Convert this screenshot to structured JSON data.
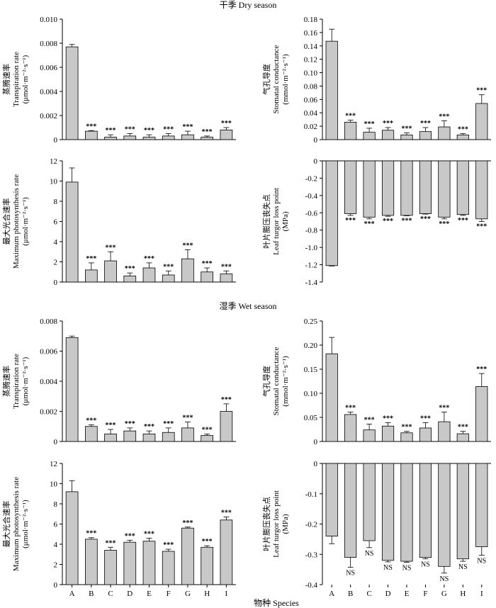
{
  "figure": {
    "dry_title": "干季 Dry season",
    "wet_title": "湿季 Wet season",
    "xlabel": "物种 Species",
    "colors": {
      "bar_fill": "#c8c8c8",
      "bar_stroke": "#000000"
    }
  },
  "chart_data": [
    {
      "type": "bar",
      "season": "Dry season",
      "categories": [
        "A",
        "B",
        "C",
        "D",
        "E",
        "F",
        "G",
        "H",
        "I"
      ],
      "ylabel": [
        "蒸腾速率",
        "Transpiration rate",
        "(μmol·m⁻²·s⁻¹)"
      ],
      "ylim": [
        0,
        0.01
      ],
      "yticks": [
        "0",
        "0.002",
        "0.004",
        "0.006",
        "0.008",
        "0.010"
      ],
      "tickvals": [
        0,
        0.002,
        0.004,
        0.006,
        0.008,
        0.01
      ],
      "values": [
        0.0077,
        0.0007,
        0.0002,
        0.0003,
        0.0002,
        0.0003,
        0.0004,
        0.0002,
        0.0008
      ],
      "errors": [
        0.0002,
        5e-05,
        0.0002,
        0.0002,
        0.0002,
        0.0002,
        0.0003,
        0.0001,
        0.0002
      ],
      "significance": [
        "",
        "***",
        "***",
        "***",
        "***",
        "***",
        "***",
        "***",
        "***"
      ]
    },
    {
      "type": "bar",
      "season": "Dry season",
      "categories": [
        "A",
        "B",
        "C",
        "D",
        "E",
        "F",
        "G",
        "H",
        "I"
      ],
      "ylabel": [
        "气孔导度",
        "Stomatal conductance",
        "(mmol·m⁻²·s⁻¹)"
      ],
      "ylim": [
        0,
        0.18
      ],
      "yticks": [
        "0",
        "0.02",
        "0.04",
        "0.06",
        "0.08",
        "0.10",
        "0.12",
        "0.14",
        "0.16",
        "0.18"
      ],
      "tickvals": [
        0,
        0.02,
        0.04,
        0.06,
        0.08,
        0.1,
        0.12,
        0.14,
        0.16,
        0.18
      ],
      "values": [
        0.147,
        0.026,
        0.011,
        0.014,
        0.007,
        0.012,
        0.019,
        0.007,
        0.054
      ],
      "errors": [
        0.018,
        0.003,
        0.006,
        0.004,
        0.003,
        0.006,
        0.009,
        0.002,
        0.013
      ],
      "significance": [
        "",
        "***",
        "***",
        "***",
        "***",
        "***",
        "***",
        "***",
        "***"
      ]
    },
    {
      "type": "bar",
      "season": "Dry season",
      "categories": [
        "A",
        "B",
        "C",
        "D",
        "E",
        "F",
        "G",
        "H",
        "I"
      ],
      "ylabel": [
        "最大光合速率",
        "Maximum photosynthesis rate",
        "(μmol·m⁻²·s⁻¹)"
      ],
      "ylim": [
        0,
        12
      ],
      "yticks": [
        "0",
        "2",
        "4",
        "6",
        "8",
        "10",
        "12"
      ],
      "tickvals": [
        0,
        2,
        4,
        6,
        8,
        10,
        12
      ],
      "values": [
        9.9,
        1.2,
        2.1,
        0.6,
        1.4,
        0.7,
        2.3,
        1.0,
        0.8
      ],
      "errors": [
        1.4,
        0.7,
        0.9,
        0.3,
        0.5,
        0.4,
        0.9,
        0.4,
        0.3
      ],
      "significance": [
        "",
        "***",
        "***",
        "***",
        "***",
        "***",
        "***",
        "***",
        "***"
      ]
    },
    {
      "type": "bar",
      "season": "Dry season",
      "categories": [
        "A",
        "B",
        "C",
        "D",
        "E",
        "F",
        "G",
        "H",
        "I"
      ],
      "ylabel": [
        "叶片膨压丧失点",
        "Leaf turgor loss point",
        "(MPa)"
      ],
      "ylim": [
        -1.4,
        0
      ],
      "yticks": [
        "0",
        "-0.2",
        "-0.4",
        "-0.6",
        "-0.8",
        "-1.0",
        "-1.2",
        "-1.4"
      ],
      "tickvals": [
        0,
        -0.2,
        -0.4,
        -0.6,
        -0.8,
        -1.0,
        -1.2,
        -1.4
      ],
      "values": [
        -1.21,
        -0.61,
        -0.65,
        -0.63,
        -0.63,
        -0.61,
        -0.65,
        -0.62,
        -0.67
      ],
      "errors": [
        0.005,
        0.02,
        0.02,
        0.01,
        0.005,
        0.005,
        0.02,
        0.01,
        0.03
      ],
      "significance": [
        "",
        "***",
        "***",
        "***",
        "***",
        "***",
        "***",
        "***",
        "***"
      ]
    },
    {
      "type": "bar",
      "season": "Wet season",
      "categories": [
        "A",
        "B",
        "C",
        "D",
        "E",
        "F",
        "G",
        "H",
        "I"
      ],
      "ylabel": [
        "蒸腾速率",
        "Transpiration rate",
        "(μmol·m⁻²·s⁻¹)"
      ],
      "ylim": [
        0,
        0.008
      ],
      "yticks": [
        "0",
        "0.002",
        "0.004",
        "0.006",
        "0.008"
      ],
      "tickvals": [
        0,
        0.002,
        0.004,
        0.006,
        0.008
      ],
      "values": [
        0.0069,
        0.001,
        0.0005,
        0.0007,
        0.0005,
        0.0006,
        0.0009,
        0.0004,
        0.002
      ],
      "errors": [
        0.0001,
        0.0001,
        0.0003,
        0.0002,
        0.0002,
        0.0003,
        0.0004,
        0.0001,
        0.0005
      ],
      "significance": [
        "",
        "***",
        "***",
        "***",
        "***",
        "***",
        "***",
        "***",
        "***"
      ]
    },
    {
      "type": "bar",
      "season": "Wet season",
      "categories": [
        "A",
        "B",
        "C",
        "D",
        "E",
        "F",
        "G",
        "H",
        "I"
      ],
      "ylabel": [
        "气孔导度",
        "Stomatal conductance",
        "(mmol·m⁻²·s⁻¹)"
      ],
      "ylim": [
        0,
        0.25
      ],
      "yticks": [
        "0",
        "0.05",
        "0.10",
        "0.15",
        "0.20",
        "0.25"
      ],
      "tickvals": [
        0,
        0.05,
        0.1,
        0.15,
        0.2,
        0.25
      ],
      "values": [
        0.182,
        0.056,
        0.024,
        0.032,
        0.018,
        0.028,
        0.041,
        0.016,
        0.114
      ],
      "errors": [
        0.034,
        0.005,
        0.012,
        0.007,
        0.003,
        0.011,
        0.02,
        0.005,
        0.027
      ],
      "significance": [
        "",
        "***",
        "***",
        "***",
        "***",
        "***",
        "***",
        "***",
        "***"
      ]
    },
    {
      "type": "bar",
      "season": "Wet season",
      "categories": [
        "A",
        "B",
        "C",
        "D",
        "E",
        "F",
        "G",
        "H",
        "I"
      ],
      "ylabel": [
        "最大光合速率",
        "Maximum photosynthesis rate",
        "(μmol·m⁻²·s⁻¹)"
      ],
      "ylim": [
        0,
        12
      ],
      "yticks": [
        "0",
        "2",
        "4",
        "6",
        "8",
        "10",
        "12"
      ],
      "tickvals": [
        0,
        2,
        4,
        6,
        8,
        10,
        12
      ],
      "values": [
        9.2,
        4.5,
        3.4,
        4.2,
        4.3,
        3.3,
        5.6,
        3.7,
        6.4
      ],
      "errors": [
        1.1,
        0.15,
        0.3,
        0.2,
        0.3,
        0.2,
        0.1,
        0.15,
        0.3
      ],
      "significance": [
        "",
        "***",
        "***",
        "***",
        "***",
        "***",
        "***",
        "***",
        "***"
      ]
    },
    {
      "type": "bar",
      "season": "Wet season",
      "categories": [
        "A",
        "B",
        "C",
        "D",
        "E",
        "F",
        "G",
        "H",
        "I"
      ],
      "ylabel": [
        "叶片膨压丧失点",
        "Leaf turgor loss point",
        "(MPa)"
      ],
      "ylim": [
        -0.4,
        0
      ],
      "yticks": [
        "0",
        "-0.1",
        "-0.2",
        "-0.3",
        "-0.4"
      ],
      "tickvals": [
        0,
        -0.1,
        -0.2,
        -0.3,
        -0.4
      ],
      "values": [
        -0.24,
        -0.31,
        -0.255,
        -0.32,
        -0.323,
        -0.31,
        -0.34,
        -0.315,
        -0.275
      ],
      "errors": [
        0.025,
        0.033,
        0.023,
        0.005,
        0.003,
        0.005,
        0.022,
        0.008,
        0.028
      ],
      "significance": [
        "",
        "NS",
        "NS",
        "NS",
        "NS",
        "NS",
        "NS",
        "NS",
        "NS"
      ]
    }
  ]
}
